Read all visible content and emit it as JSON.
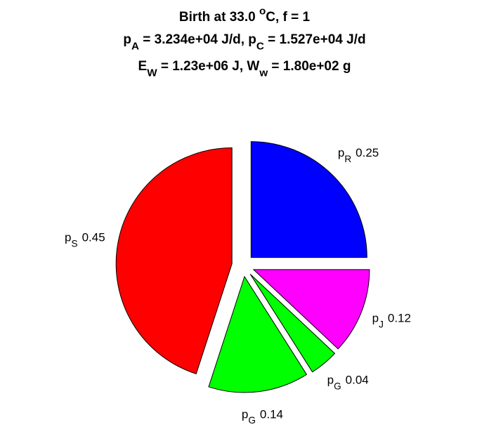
{
  "chart_data": {
    "type": "pie",
    "title_lines": [
      [
        {
          "t": "Birth at 33.0 "
        },
        {
          "t": "o",
          "pos": "sup"
        },
        {
          "t": "C, f = 1"
        }
      ],
      [
        {
          "t": "p"
        },
        {
          "t": "A",
          "pos": "sub"
        },
        {
          "t": " = 3.234e+04 J/d, p"
        },
        {
          "t": "C",
          "pos": "sub"
        },
        {
          "t": " = 1.527e+04 J/d"
        }
      ],
      [
        {
          "t": "E"
        },
        {
          "t": "W",
          "pos": "sub"
        },
        {
          "t": " = 1.23e+06 J, W"
        },
        {
          "t": "w",
          "pos": "sub"
        },
        {
          "t": " = 1.80e+02 g"
        }
      ]
    ],
    "categories": [
      [
        {
          "t": "p"
        },
        {
          "t": "R",
          "pos": "sub"
        }
      ],
      [
        {
          "t": "p"
        },
        {
          "t": "J",
          "pos": "sub"
        }
      ],
      [
        {
          "t": "p"
        },
        {
          "t": "G",
          "pos": "sub"
        }
      ],
      [
        {
          "t": "p"
        },
        {
          "t": "G",
          "pos": "sub"
        }
      ],
      [
        {
          "t": "p"
        },
        {
          "t": "S",
          "pos": "sub"
        }
      ]
    ],
    "values": [
      0.25,
      0.12,
      0.04,
      0.14,
      0.45
    ],
    "colors": [
      "#0000ff",
      "#ff00ff",
      "#00ff00",
      "#00ff00",
      "#ff0000"
    ],
    "start": "top",
    "direction": "clockwise",
    "explode": true
  }
}
